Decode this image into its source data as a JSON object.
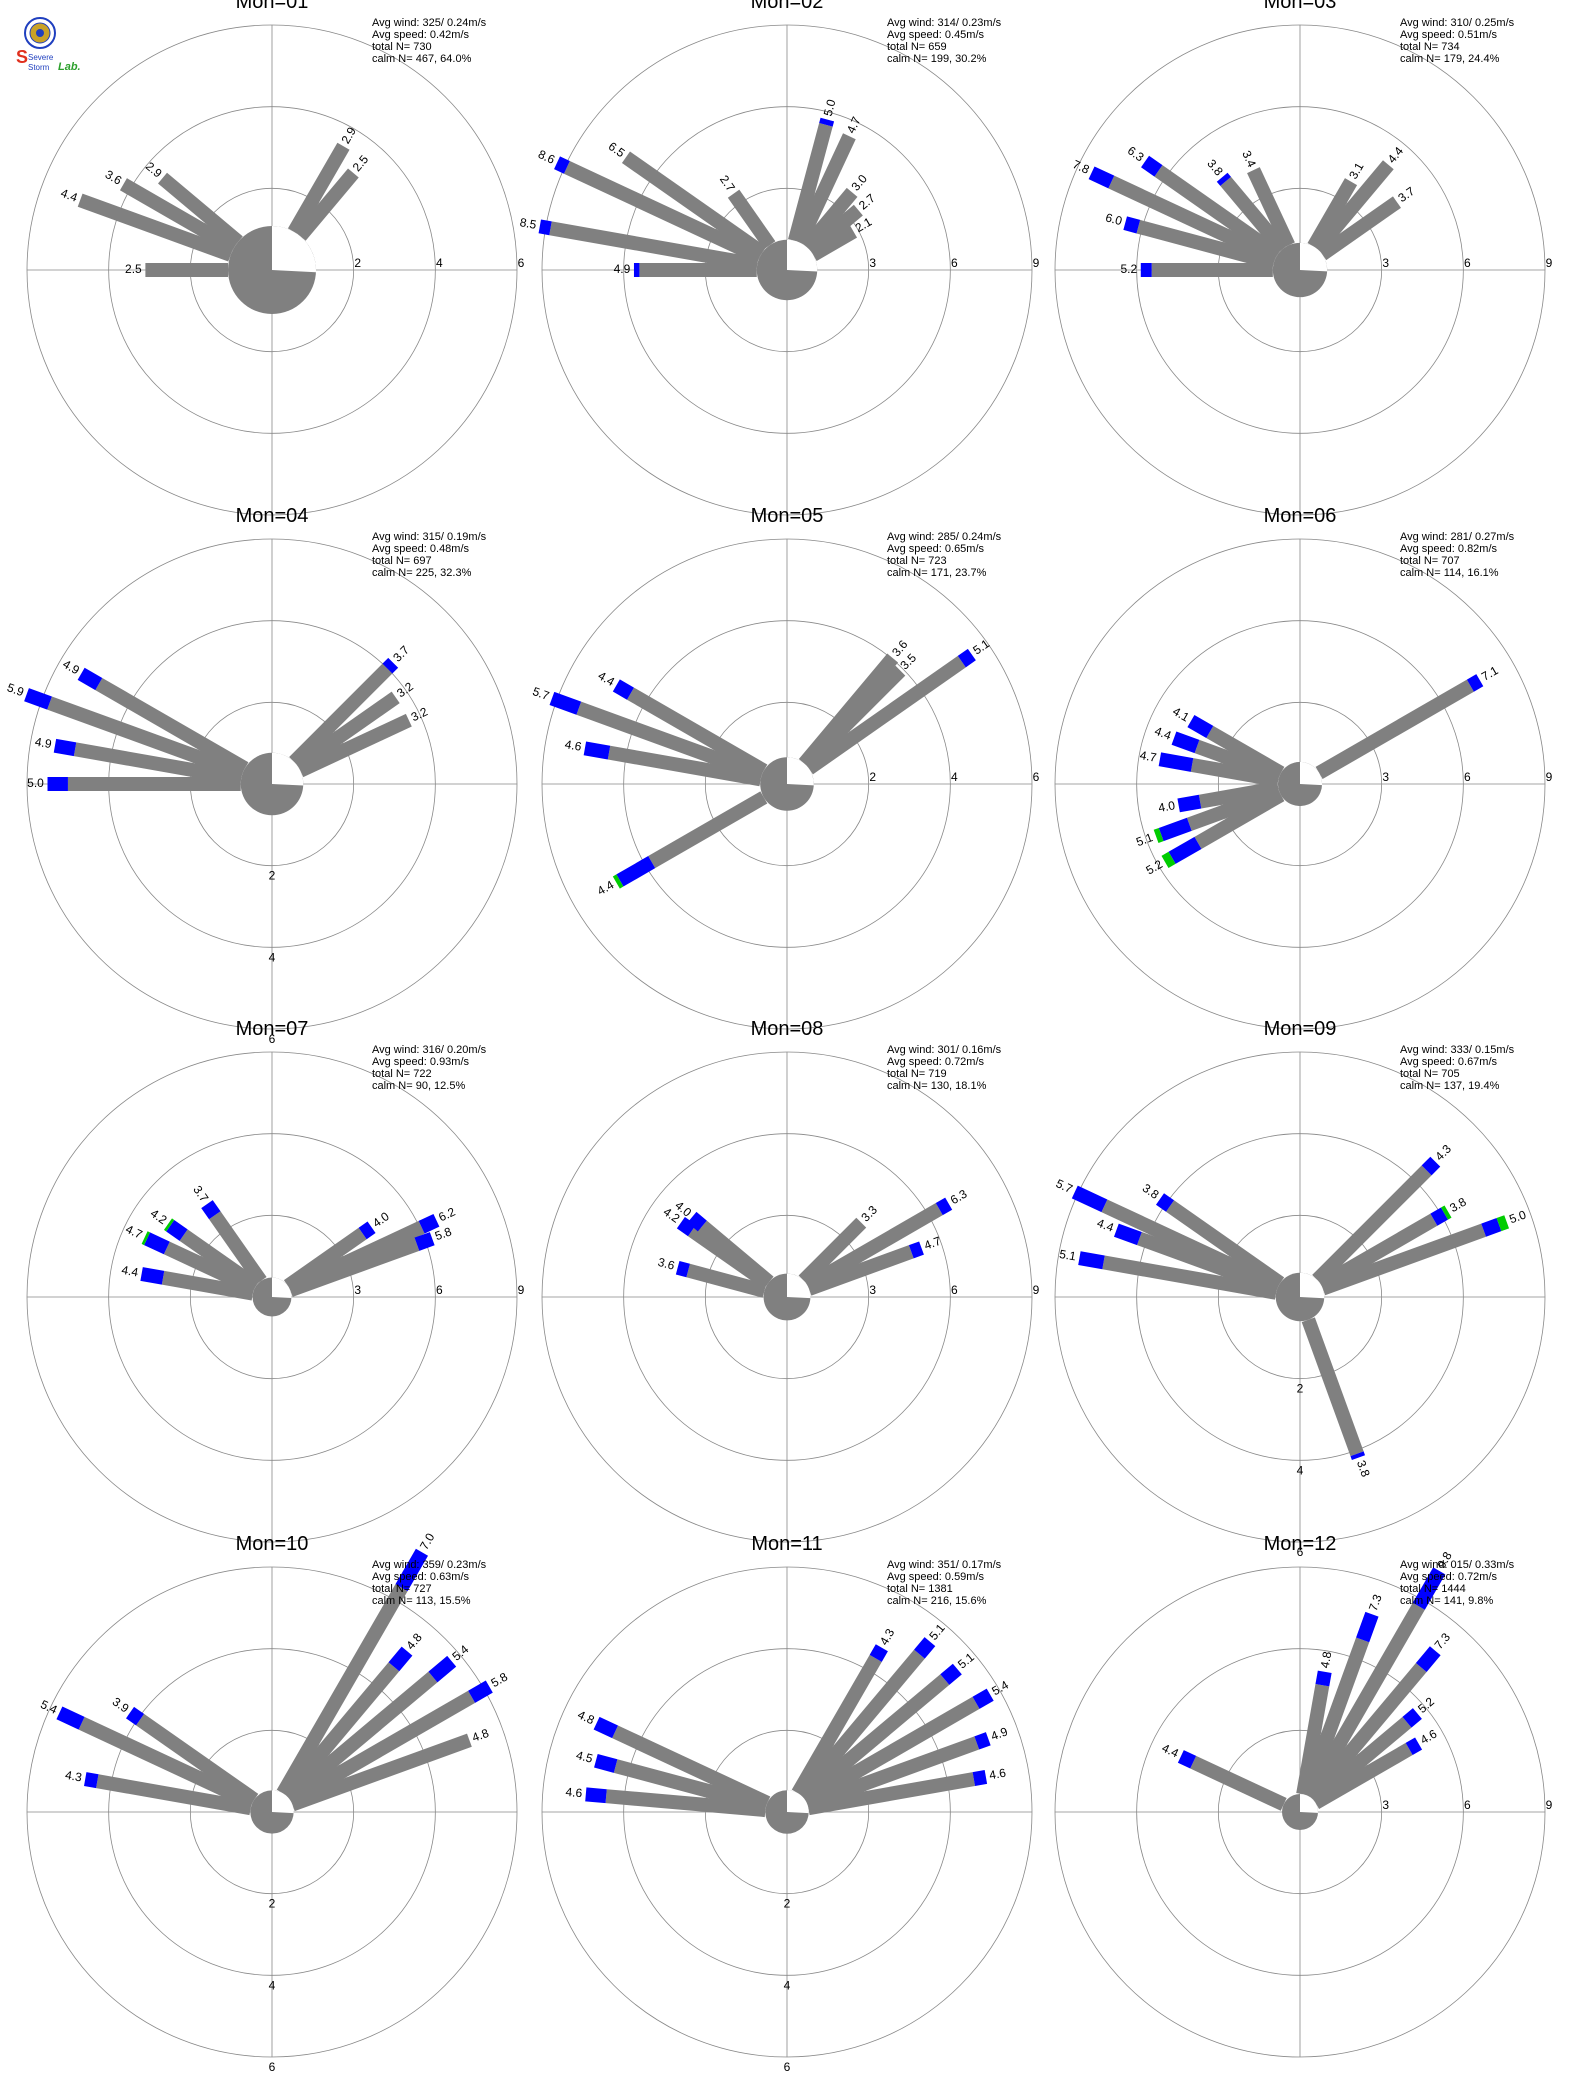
{
  "logo": {
    "text_top": "Severe",
    "text_bottom": "Storm",
    "text_lab": "Lab.",
    "colors": {
      "red": "#e0301e",
      "blue": "#1f3fbf",
      "green": "#2ca02c",
      "gold": "#c9a227"
    }
  },
  "colors": {
    "calm_fill": "#808080",
    "low_speed": "#808080",
    "mid_speed": "#0000ff",
    "high_speed": "#00cc00",
    "grid": "#888888",
    "axis": "#888888"
  },
  "chart_data": [
    {
      "type": "wind-rose",
      "title": "Mon=01",
      "stats": {
        "avg_wind_label": "Avg wind:",
        "avg_wind": "325/ 0.24m/s",
        "avg_speed_label": "Avg speed:",
        "avg_speed": "0.42m/s",
        "total_label": "total N=",
        "total": "730",
        "calm_label": "calm N=",
        "calm": "467,  64.0%"
      },
      "ring_labels": [
        "2",
        "4",
        "6"
      ],
      "rmax": 6,
      "label_angle": 90,
      "calm_pct": 64.0,
      "petals": [
        {
          "dir": 290,
          "grey": 4.3,
          "blue": 0,
          "green": 0,
          "label": "4.4"
        },
        {
          "dir": 300,
          "grey": 3.5,
          "blue": 0,
          "green": 0,
          "label": "3.6"
        },
        {
          "dir": 310,
          "grey": 2.8,
          "blue": 0,
          "green": 0,
          "label": "2.9"
        },
        {
          "dir": 270,
          "grey": 2.4,
          "blue": 0,
          "green": 0,
          "label": "2.5"
        },
        {
          "dir": 30,
          "grey": 2.8,
          "blue": 0,
          "green": 0,
          "label": "2.9"
        },
        {
          "dir": 40,
          "grey": 2.4,
          "blue": 0,
          "green": 0,
          "label": "2.5"
        }
      ]
    },
    {
      "type": "wind-rose",
      "title": "Mon=02",
      "stats": {
        "avg_wind_label": "Avg wind:",
        "avg_wind": "314/ 0.23m/s",
        "avg_speed_label": "Avg speed:",
        "avg_speed": "0.45m/s",
        "total_label": "total N=",
        "total": "659",
        "calm_label": "calm N=",
        "calm": "199,  30.2%"
      },
      "ring_labels": [
        "3",
        "6",
        "9"
      ],
      "rmax": 9,
      "label_angle": 90,
      "calm_pct": 30.2,
      "petals": [
        {
          "dir": 295,
          "grey": 8.2,
          "blue": 0.4,
          "green": 0,
          "label": "8.6"
        },
        {
          "dir": 280,
          "grey": 8.1,
          "blue": 0.4,
          "green": 0,
          "label": "8.5"
        },
        {
          "dir": 305,
          "grey": 6.5,
          "blue": 0,
          "green": 0,
          "label": "6.5"
        },
        {
          "dir": 325,
          "grey": 2.7,
          "blue": 0,
          "green": 0,
          "label": "2.7"
        },
        {
          "dir": 270,
          "grey": 4.7,
          "blue": 0.2,
          "green": 0,
          "label": "4.9"
        },
        {
          "dir": 15,
          "grey": 4.8,
          "blue": 0.2,
          "green": 0,
          "label": "5.0"
        },
        {
          "dir": 25,
          "grey": 4.7,
          "blue": 0,
          "green": 0,
          "label": "4.7"
        },
        {
          "dir": 40,
          "grey": 3.0,
          "blue": 0,
          "green": 0,
          "label": "3.0"
        },
        {
          "dir": 50,
          "grey": 2.7,
          "blue": 0,
          "green": 0,
          "label": "2.7"
        },
        {
          "dir": 60,
          "grey": 2.1,
          "blue": 0,
          "green": 0,
          "label": "2.1"
        }
      ]
    },
    {
      "type": "wind-rose",
      "title": "Mon=03",
      "stats": {
        "avg_wind_label": "Avg wind:",
        "avg_wind": "310/ 0.25m/s",
        "avg_speed_label": "Avg speed:",
        "avg_speed": "0.51m/s",
        "total_label": "total N=",
        "total": "734",
        "calm_label": "calm N=",
        "calm": "179,  24.4%"
      },
      "ring_labels": [
        "3",
        "6",
        "9"
      ],
      "rmax": 9,
      "label_angle": 90,
      "calm_pct": 24.4,
      "petals": [
        {
          "dir": 295,
          "grey": 7.0,
          "blue": 0.8,
          "green": 0,
          "label": "7.8"
        },
        {
          "dir": 305,
          "grey": 5.7,
          "blue": 0.6,
          "green": 0,
          "label": "6.3"
        },
        {
          "dir": 285,
          "grey": 5.5,
          "blue": 0.5,
          "green": 0,
          "label": "6.0"
        },
        {
          "dir": 270,
          "grey": 4.8,
          "blue": 0.4,
          "green": 0,
          "label": "5.2"
        },
        {
          "dir": 320,
          "grey": 3.6,
          "blue": 0.2,
          "green": 0,
          "label": "3.8"
        },
        {
          "dir": 335,
          "grey": 3.4,
          "blue": 0,
          "green": 0,
          "label": "3.4"
        },
        {
          "dir": 40,
          "grey": 4.4,
          "blue": 0,
          "green": 0,
          "label": "4.4"
        },
        {
          "dir": 55,
          "grey": 3.7,
          "blue": 0,
          "green": 0,
          "label": "3.7"
        },
        {
          "dir": 30,
          "grey": 3.1,
          "blue": 0,
          "green": 0,
          "label": "3.1"
        }
      ]
    },
    {
      "type": "wind-rose",
      "title": "Mon=04",
      "stats": {
        "avg_wind_label": "Avg wind:",
        "avg_wind": "315/ 0.19m/s",
        "avg_speed_label": "Avg speed:",
        "avg_speed": "0.48m/s",
        "total_label": "total N=",
        "total": "697",
        "calm_label": "calm N=",
        "calm": "225,  32.3%"
      },
      "ring_labels": [
        "2",
        "4",
        "6"
      ],
      "rmax": 6,
      "label_angle": 180,
      "calm_pct": 32.3,
      "petals": [
        {
          "dir": 290,
          "grey": 5.3,
          "blue": 0.6,
          "green": 0,
          "label": "5.9"
        },
        {
          "dir": 300,
          "grey": 4.4,
          "blue": 0.5,
          "green": 0,
          "label": "4.9"
        },
        {
          "dir": 280,
          "grey": 4.4,
          "blue": 0.5,
          "green": 0,
          "label": "4.9"
        },
        {
          "dir": 270,
          "grey": 4.5,
          "blue": 0.5,
          "green": 0,
          "label": "5.0"
        },
        {
          "dir": 45,
          "grey": 3.5,
          "blue": 0.2,
          "green": 0,
          "label": "3.7"
        },
        {
          "dir": 55,
          "grey": 3.2,
          "blue": 0,
          "green": 0,
          "label": "3.2"
        },
        {
          "dir": 65,
          "grey": 3.2,
          "blue": 0,
          "green": 0,
          "label": "3.2"
        }
      ]
    },
    {
      "type": "wind-rose",
      "title": "Mon=05",
      "stats": {
        "avg_wind_label": "Avg wind:",
        "avg_wind": "285/ 0.24m/s",
        "avg_speed_label": "Avg speed:",
        "avg_speed": "0.65m/s",
        "total_label": "total N=",
        "total": "723",
        "calm_label": "calm N=",
        "calm": "171,  23.7%"
      },
      "ring_labels": [
        "2",
        "4",
        "6"
      ],
      "rmax": 6,
      "label_angle": 90,
      "calm_pct": 23.7,
      "petals": [
        {
          "dir": 290,
          "grey": 5.0,
          "blue": 0.7,
          "green": 0,
          "label": "5.7"
        },
        {
          "dir": 300,
          "grey": 4.0,
          "blue": 0.4,
          "green": 0,
          "label": "4.4"
        },
        {
          "dir": 280,
          "grey": 4.0,
          "blue": 0.6,
          "green": 0,
          "label": "4.6"
        },
        {
          "dir": 240,
          "grey": 3.4,
          "blue": 0.9,
          "green": 0.1,
          "label": "4.4"
        },
        {
          "dir": 55,
          "grey": 4.8,
          "blue": 0.3,
          "green": 0,
          "label": "5.1"
        },
        {
          "dir": 40,
          "grey": 3.6,
          "blue": 0,
          "green": 0,
          "label": "3.6"
        },
        {
          "dir": 45,
          "grey": 3.5,
          "blue": 0,
          "green": 0,
          "label": "3.5"
        }
      ]
    },
    {
      "type": "wind-rose",
      "title": "Mon=06",
      "stats": {
        "avg_wind_label": "Avg wind:",
        "avg_wind": "281/ 0.27m/s",
        "avg_speed_label": "Avg speed:",
        "avg_speed": "0.82m/s",
        "total_label": "total N=",
        "total": "707",
        "calm_label": "calm N=",
        "calm": "114,  16.1%"
      },
      "ring_labels": [
        "3",
        "6",
        "9"
      ],
      "rmax": 9,
      "label_angle": 90,
      "calm_pct": 16.1,
      "petals": [
        {
          "dir": 60,
          "grey": 6.7,
          "blue": 0.4,
          "green": 0,
          "label": "7.1"
        },
        {
          "dir": 240,
          "grey": 3.8,
          "blue": 1.1,
          "green": 0.3,
          "label": "5.2"
        },
        {
          "dir": 250,
          "grey": 3.8,
          "blue": 1.1,
          "green": 0.2,
          "label": "5.1"
        },
        {
          "dir": 280,
          "grey": 3.5,
          "blue": 1.2,
          "green": 0,
          "label": "4.7"
        },
        {
          "dir": 290,
          "grey": 3.5,
          "blue": 0.9,
          "green": 0,
          "label": "4.4"
        },
        {
          "dir": 300,
          "grey": 3.3,
          "blue": 0.8,
          "green": 0,
          "label": "4.1"
        },
        {
          "dir": 260,
          "grey": 3.2,
          "blue": 0.8,
          "green": 0,
          "label": "4.0"
        }
      ]
    },
    {
      "type": "wind-rose",
      "title": "Mon=07",
      "stats": {
        "avg_wind_label": "Avg wind:",
        "avg_wind": "316/ 0.20m/s",
        "avg_speed_label": "Avg speed:",
        "avg_speed": "0.93m/s",
        "total_label": "total N=",
        "total": "722",
        "calm_label": "calm N=",
        "calm": "90,  12.5%"
      },
      "ring_labels": [
        "3",
        "6",
        "9"
      ],
      "rmax": 9,
      "label_angle": 90,
      "calm_pct": 12.5,
      "petals": [
        {
          "dir": 65,
          "grey": 5.6,
          "blue": 0.6,
          "green": 0,
          "label": "6.2"
        },
        {
          "dir": 70,
          "grey": 5.2,
          "blue": 0.6,
          "green": 0,
          "label": "5.8"
        },
        {
          "dir": 295,
          "grey": 3.8,
          "blue": 0.8,
          "green": 0.1,
          "label": "4.7"
        },
        {
          "dir": 280,
          "grey": 3.6,
          "blue": 0.8,
          "green": 0,
          "label": "4.4"
        },
        {
          "dir": 305,
          "grey": 3.5,
          "blue": 0.6,
          "green": 0.1,
          "label": "4.2"
        },
        {
          "dir": 325,
          "grey": 3.2,
          "blue": 0.5,
          "green": 0,
          "label": "3.7"
        },
        {
          "dir": 55,
          "grey": 3.6,
          "blue": 0.4,
          "green": 0,
          "label": "4.0"
        }
      ]
    },
    {
      "type": "wind-rose",
      "title": "Mon=08",
      "stats": {
        "avg_wind_label": "Avg wind:",
        "avg_wind": "301/ 0.16m/s",
        "avg_speed_label": "Avg speed:",
        "avg_speed": "0.72m/s",
        "total_label": "total N=",
        "total": "719",
        "calm_label": "calm N=",
        "calm": "130,  18.1%"
      },
      "ring_labels": [
        "3",
        "6",
        "9"
      ],
      "rmax": 9,
      "label_angle": 90,
      "calm_pct": 18.1,
      "petals": [
        {
          "dir": 60,
          "grey": 5.9,
          "blue": 0.4,
          "green": 0,
          "label": "6.3"
        },
        {
          "dir": 70,
          "grey": 4.3,
          "blue": 0.4,
          "green": 0,
          "label": "4.7"
        },
        {
          "dir": 305,
          "grey": 3.7,
          "blue": 0.5,
          "green": 0,
          "label": "4.2"
        },
        {
          "dir": 310,
          "grey": 3.5,
          "blue": 0.5,
          "green": 0,
          "label": "4.0"
        },
        {
          "dir": 285,
          "grey": 3.2,
          "blue": 0.4,
          "green": 0,
          "label": "3.6"
        },
        {
          "dir": 45,
          "grey": 3.3,
          "blue": 0,
          "green": 0,
          "label": "3.3"
        }
      ]
    },
    {
      "type": "wind-rose",
      "title": "Mon=09",
      "stats": {
        "avg_wind_label": "Avg wind:",
        "avg_wind": "333/ 0.15m/s",
        "avg_speed_label": "Avg speed:",
        "avg_speed": "0.67m/s",
        "total_label": "total N=",
        "total": "705",
        "calm_label": "calm N=",
        "calm": "137,  19.4%"
      },
      "ring_labels": [
        "2",
        "4",
        "6"
      ],
      "rmax": 6,
      "label_angle": 180,
      "calm_pct": 19.4,
      "petals": [
        {
          "dir": 295,
          "grey": 4.9,
          "blue": 0.8,
          "green": 0,
          "label": "5.7"
        },
        {
          "dir": 280,
          "grey": 4.5,
          "blue": 0.6,
          "green": 0,
          "label": "5.1"
        },
        {
          "dir": 290,
          "grey": 3.8,
          "blue": 0.6,
          "green": 0,
          "label": "4.4"
        },
        {
          "dir": 305,
          "grey": 3.5,
          "blue": 0.3,
          "green": 0,
          "label": "3.8"
        },
        {
          "dir": 70,
          "grey": 4.4,
          "blue": 0.4,
          "green": 0.2,
          "label": "5.0"
        },
        {
          "dir": 45,
          "grey": 4.0,
          "blue": 0.3,
          "green": 0,
          "label": "4.3"
        },
        {
          "dir": 60,
          "grey": 3.4,
          "blue": 0.3,
          "green": 0.1,
          "label": "3.8"
        },
        {
          "dir": 160,
          "grey": 3.7,
          "blue": 0.1,
          "green": 0,
          "label": "3.8"
        }
      ]
    },
    {
      "type": "wind-rose",
      "title": "Mon=10",
      "stats": {
        "avg_wind_label": "Avg wind:",
        "avg_wind": "359/ 0.23m/s",
        "avg_speed_label": "Avg speed:",
        "avg_speed": "0.63m/s",
        "total_label": "total N=",
        "total": "727",
        "calm_label": "calm N=",
        "calm": "113,  15.5%"
      },
      "ring_labels": [
        "2",
        "4",
        "6"
      ],
      "rmax": 6,
      "label_angle": 180,
      "calm_pct": 15.5,
      "petals": [
        {
          "dir": 30,
          "grey": 6.0,
          "blue": 1.0,
          "green": 0,
          "label": "7.0"
        },
        {
          "dir": 40,
          "grey": 4.3,
          "blue": 0.5,
          "green": 0,
          "label": "4.8"
        },
        {
          "dir": 50,
          "grey": 4.8,
          "blue": 0.6,
          "green": 0,
          "label": "5.4"
        },
        {
          "dir": 60,
          "grey": 5.3,
          "blue": 0.5,
          "green": 0,
          "label": "5.8"
        },
        {
          "dir": 70,
          "grey": 4.8,
          "blue": 0,
          "green": 0,
          "label": "4.8"
        },
        {
          "dir": 295,
          "grey": 4.8,
          "blue": 0.6,
          "green": 0,
          "label": "5.4"
        },
        {
          "dir": 305,
          "grey": 3.6,
          "blue": 0.3,
          "green": 0,
          "label": "3.9"
        },
        {
          "dir": 280,
          "grey": 4.0,
          "blue": 0.3,
          "green": 0,
          "label": "4.3"
        }
      ]
    },
    {
      "type": "wind-rose",
      "title": "Mon=11",
      "stats": {
        "avg_wind_label": "Avg wind:",
        "avg_wind": "351/ 0.17m/s",
        "avg_speed_label": "Avg speed:",
        "avg_speed": "0.59m/s",
        "total_label": "total N=",
        "total": "1381",
        "calm_label": "calm N=",
        "calm": "216,  15.6%"
      },
      "ring_labels": [
        "2",
        "4",
        "6"
      ],
      "rmax": 6,
      "label_angle": 180,
      "calm_pct": 15.6,
      "petals": [
        {
          "dir": 30,
          "grey": 4.0,
          "blue": 0.3,
          "green": 0,
          "label": "4.3"
        },
        {
          "dir": 40,
          "grey": 4.7,
          "blue": 0.4,
          "green": 0,
          "label": "5.1"
        },
        {
          "dir": 50,
          "grey": 4.7,
          "blue": 0.4,
          "green": 0,
          "label": "5.1"
        },
        {
          "dir": 60,
          "grey": 5.0,
          "blue": 0.4,
          "green": 0,
          "label": "5.4"
        },
        {
          "dir": 70,
          "grey": 4.6,
          "blue": 0.3,
          "green": 0,
          "label": "4.9"
        },
        {
          "dir": 80,
          "grey": 4.3,
          "blue": 0.3,
          "green": 0,
          "label": "4.6"
        },
        {
          "dir": 295,
          "grey": 4.3,
          "blue": 0.5,
          "green": 0,
          "label": "4.8"
        },
        {
          "dir": 285,
          "grey": 4.0,
          "blue": 0.5,
          "green": 0,
          "label": "4.5"
        },
        {
          "dir": 275,
          "grey": 4.1,
          "blue": 0.5,
          "green": 0,
          "label": "4.6"
        }
      ]
    },
    {
      "type": "wind-rose",
      "title": "Mon=12",
      "stats": {
        "avg_wind_label": "Avg wind:",
        "avg_wind": "015/ 0.33m/s",
        "avg_speed_label": "Avg speed:",
        "avg_speed": "0.72m/s",
        "total_label": "total N=",
        "total": "1444",
        "calm_label": "calm N=",
        "calm": "141,   9.8%"
      },
      "ring_labels": [
        "3",
        "6",
        "9"
      ],
      "rmax": 9,
      "label_angle": 90,
      "calm_pct": 9.8,
      "petals": [
        {
          "dir": 30,
          "grey": 8.3,
          "blue": 1.5,
          "green": 0,
          "label": "9.8"
        },
        {
          "dir": 20,
          "grey": 6.3,
          "blue": 1.0,
          "green": 0,
          "label": "7.3"
        },
        {
          "dir": 40,
          "grey": 6.5,
          "blue": 0.8,
          "green": 0,
          "label": "7.3"
        },
        {
          "dir": 10,
          "grey": 4.3,
          "blue": 0.5,
          "green": 0,
          "label": "4.8"
        },
        {
          "dir": 50,
          "grey": 4.7,
          "blue": 0.5,
          "green": 0,
          "label": "5.2"
        },
        {
          "dir": 60,
          "grey": 4.2,
          "blue": 0.4,
          "green": 0,
          "label": "4.6"
        },
        {
          "dir": 295,
          "grey": 3.9,
          "blue": 0.5,
          "green": 0,
          "label": "4.4"
        }
      ]
    }
  ]
}
